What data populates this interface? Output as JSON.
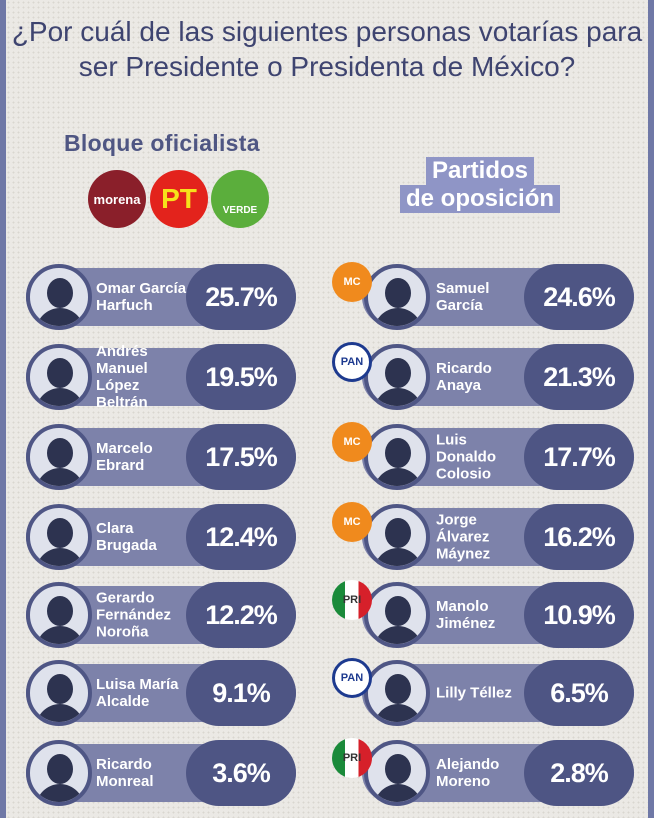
{
  "title": "¿Por cuál de las siguientes personas votarías  para ser Presidente o Presidenta de México?",
  "left_heading": "Bloque oficialista",
  "left_logos": [
    {
      "label": "morena",
      "color": "#8a1f2a"
    },
    {
      "label": "PT",
      "color": "#e3231c"
    },
    {
      "label": "VERDE",
      "color": "#5bae3c"
    }
  ],
  "right_heading_1": "Partidos",
  "right_heading_2": "de oposición",
  "colors": {
    "frame": "#6f78a6",
    "bar": "#7d82aa",
    "pill": "#4e5584",
    "title": "#3e4470"
  },
  "left": [
    {
      "name": "Omar García Harfuch",
      "pct": "25.7%"
    },
    {
      "name": "Andrés Manuel López Beltrán",
      "pct": "19.5%"
    },
    {
      "name": "Marcelo Ebrard",
      "pct": "17.5%"
    },
    {
      "name": "Clara Brugada",
      "pct": "12.4%"
    },
    {
      "name": "Gerardo Fernández Noroña",
      "pct": "12.2%"
    },
    {
      "name": "Luisa María Alcalde",
      "pct": "9.1%"
    },
    {
      "name": "Ricardo Monreal",
      "pct": "3.6%"
    }
  ],
  "right": [
    {
      "name": "Samuel García",
      "pct": "24.6%",
      "party": "MC"
    },
    {
      "name": "Ricardo Anaya",
      "pct": "21.3%",
      "party": "PAN"
    },
    {
      "name": "Luis Donaldo Colosio",
      "pct": "17.7%",
      "party": "MC"
    },
    {
      "name": "Jorge Álvarez Máynez",
      "pct": "16.2%",
      "party": "MC"
    },
    {
      "name": "Manolo Jiménez",
      "pct": "10.9%",
      "party": "PRI"
    },
    {
      "name": "Lilly Téllez",
      "pct": "6.5%",
      "party": "PAN"
    },
    {
      "name": "Alejando Moreno",
      "pct": "2.8%",
      "party": "PRI"
    }
  ]
}
